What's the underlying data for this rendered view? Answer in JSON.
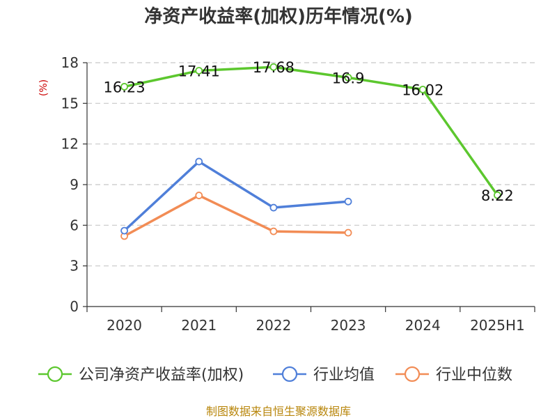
{
  "chart_data": {
    "type": "line",
    "title": "净资产收益率(加权)历年情况(%)",
    "ylabel": "(%)",
    "categories": [
      "2020",
      "2021",
      "2022",
      "2023",
      "2024",
      "2025H1"
    ],
    "ylim": [
      0,
      18
    ],
    "yticks": [
      0,
      3,
      6,
      9,
      12,
      15,
      18
    ],
    "grid": true,
    "legend_position": "bottom",
    "series": [
      {
        "name": "公司净资产收益率(加权)",
        "color": "#5cc72e",
        "values": [
          16.23,
          17.41,
          17.68,
          16.9,
          16.02,
          8.22
        ],
        "labels": [
          "16.23",
          "17.41",
          "17.68",
          "16.9",
          "16.02",
          "8.22"
        ]
      },
      {
        "name": "行业均值",
        "color": "#4f7fd9",
        "values": [
          5.6,
          10.7,
          7.3,
          7.75,
          null,
          null
        ]
      },
      {
        "name": "行业中位数",
        "color": "#f28c55",
        "values": [
          5.2,
          8.2,
          5.55,
          5.45,
          null,
          null
        ]
      }
    ]
  },
  "source": "制图数据来自恒生聚源数据库"
}
